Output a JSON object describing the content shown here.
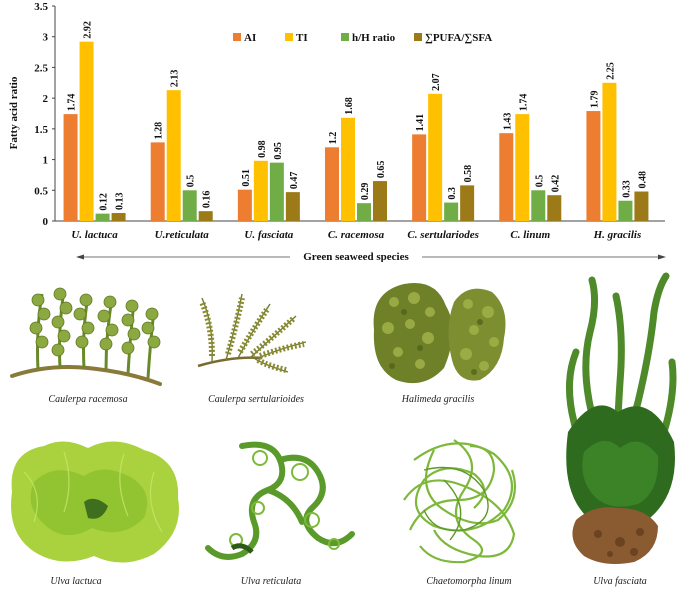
{
  "chart_data": {
    "type": "bar",
    "ylabel": "Fatty acid ratio",
    "xlabel": "Green seaweed species",
    "categories": [
      "U. lactuca",
      "U.reticulata",
      "U. fasciata",
      "C. racemosa",
      "C. sertulariodes",
      "C. linum",
      "H. gracilis"
    ],
    "yticks": [
      "0",
      "0.5",
      "1",
      "1.5",
      "2",
      "2.5",
      "3",
      "3.5"
    ],
    "ylim": [
      0,
      3.5
    ],
    "grid": false,
    "legend_position": "top-center",
    "series": [
      {
        "name": "AI",
        "color": "#ED7D31",
        "values": [
          1.74,
          1.28,
          0.51,
          1.2,
          1.41,
          1.43,
          1.79
        ],
        "labels": [
          "1.74",
          "1.28",
          "0.51",
          "1.2",
          "1.41",
          "1.43",
          "1.79"
        ]
      },
      {
        "name": "TI",
        "color": "#FFC000",
        "values": [
          2.92,
          2.13,
          0.98,
          1.68,
          2.07,
          1.74,
          2.25
        ],
        "labels": [
          "2.92",
          "2.13",
          "0.98",
          "1.68",
          "2.07",
          "1.74",
          "2.25"
        ]
      },
      {
        "name": "h/H ratio",
        "color": "#70AD47",
        "values": [
          0.12,
          0.5,
          0.95,
          0.29,
          0.3,
          0.5,
          0.33
        ],
        "labels": [
          "0.12",
          "0.5",
          "0.95",
          "0.29",
          "0.3",
          "0.5",
          "0.33"
        ]
      },
      {
        "name": "∑PUFA/∑SFA",
        "color": "#9C7A18",
        "values": [
          0.13,
          0.16,
          0.47,
          0.65,
          0.58,
          0.42,
          0.48
        ],
        "labels": [
          "0.13",
          "0.16",
          "0.47",
          "0.65",
          "0.58",
          "0.42",
          "0.48"
        ]
      }
    ]
  },
  "photos": {
    "items": [
      {
        "caption": "Caulerpa racemosa",
        "icon": "caulerpa-racemosa-photo",
        "color": "#7E9A3A"
      },
      {
        "caption": "Caulerpa sertularioides",
        "icon": "caulerpa-sertularioides-photo",
        "color": "#6E7F34"
      },
      {
        "caption": "Halimeda gracilis",
        "icon": "halimeda-gracilis-photo",
        "color": "#6B7E2A"
      },
      {
        "caption": "Ulva lactuca",
        "icon": "ulva-lactuca-photo",
        "color": "#9CC934"
      },
      {
        "caption": "Ulva reticulata",
        "icon": "ulva-reticulata-photo",
        "color": "#5E9A2A"
      },
      {
        "caption": "Chaetomorpha linum",
        "icon": "chaetomorpha-linum-photo",
        "color": "#7DB83A"
      },
      {
        "caption": "Ulva fasciata",
        "icon": "ulva-fasciata-photo",
        "color": "#2F6B1E"
      }
    ]
  }
}
